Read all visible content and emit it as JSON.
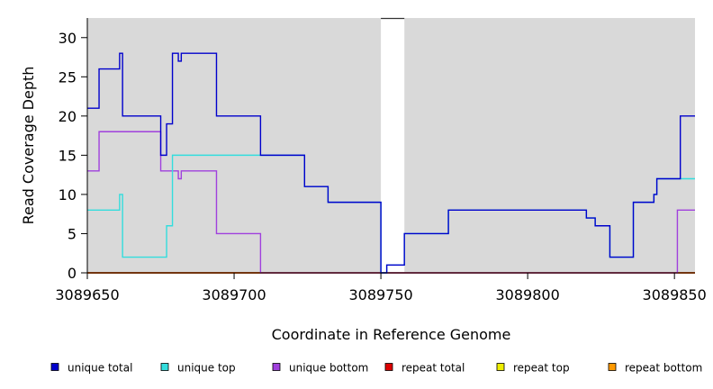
{
  "chart_data": {
    "type": "line",
    "step": true,
    "xlabel": "Coordinate in Reference Genome",
    "ylabel": "Read Coverage Depth",
    "xlim": [
      3089650,
      3089857
    ],
    "ylim": [
      0,
      32.5
    ],
    "xticks": [
      3089650,
      3089700,
      3089750,
      3089800,
      3089850
    ],
    "yticks": [
      0,
      5,
      10,
      15,
      20,
      25,
      30
    ],
    "background_color": "#d9d9d9",
    "gap_region": [
      3089750,
      3089758
    ],
    "legend_position": "bottom",
    "series": [
      {
        "name": "unique total",
        "color": "#0000cc",
        "points": [
          [
            3089650,
            21
          ],
          [
            3089654,
            26
          ],
          [
            3089661,
            28
          ],
          [
            3089662,
            20
          ],
          [
            3089675,
            15
          ],
          [
            3089677,
            19
          ],
          [
            3089679,
            28
          ],
          [
            3089681,
            27
          ],
          [
            3089682,
            28
          ],
          [
            3089694,
            20
          ],
          [
            3089709,
            15
          ],
          [
            3089724,
            11
          ],
          [
            3089732,
            9
          ],
          [
            3089750,
            0
          ],
          [
            3089752,
            1
          ],
          [
            3089758,
            5
          ],
          [
            3089773,
            8
          ],
          [
            3089820,
            7
          ],
          [
            3089823,
            6
          ],
          [
            3089828,
            2
          ],
          [
            3089836,
            9
          ],
          [
            3089843,
            10
          ],
          [
            3089844,
            12
          ],
          [
            3089852,
            20
          ],
          [
            3089857,
            20
          ]
        ]
      },
      {
        "name": "unique top",
        "color": "#33dddd",
        "points": [
          [
            3089650,
            8
          ],
          [
            3089661,
            10
          ],
          [
            3089662,
            2
          ],
          [
            3089677,
            6
          ],
          [
            3089679,
            15
          ],
          [
            3089709,
            15
          ],
          [
            3089724,
            11
          ],
          [
            3089732,
            9
          ],
          [
            3089750,
            0
          ],
          [
            3089752,
            1
          ],
          [
            3089758,
            5
          ],
          [
            3089773,
            8
          ],
          [
            3089820,
            7
          ],
          [
            3089823,
            6
          ],
          [
            3089828,
            2
          ],
          [
            3089836,
            9
          ],
          [
            3089843,
            10
          ],
          [
            3089844,
            12
          ],
          [
            3089857,
            12
          ]
        ]
      },
      {
        "name": "unique bottom",
        "color": "#a040dd",
        "points": [
          [
            3089650,
            13
          ],
          [
            3089654,
            18
          ],
          [
            3089675,
            13
          ],
          [
            3089681,
            12
          ],
          [
            3089682,
            13
          ],
          [
            3089694,
            5
          ],
          [
            3089709,
            0
          ],
          [
            3089851,
            8
          ],
          [
            3089857,
            8
          ]
        ]
      },
      {
        "name": "repeat total",
        "color": "#dd0000",
        "points": [
          [
            3089650,
            0
          ],
          [
            3089857,
            0
          ]
        ]
      },
      {
        "name": "repeat top",
        "color": "#eeee00",
        "points": [
          [
            3089650,
            0
          ],
          [
            3089857,
            0
          ]
        ]
      },
      {
        "name": "repeat bottom",
        "color": "#ff9900",
        "points": [
          [
            3089650,
            0
          ],
          [
            3089857,
            0
          ]
        ]
      }
    ]
  }
}
